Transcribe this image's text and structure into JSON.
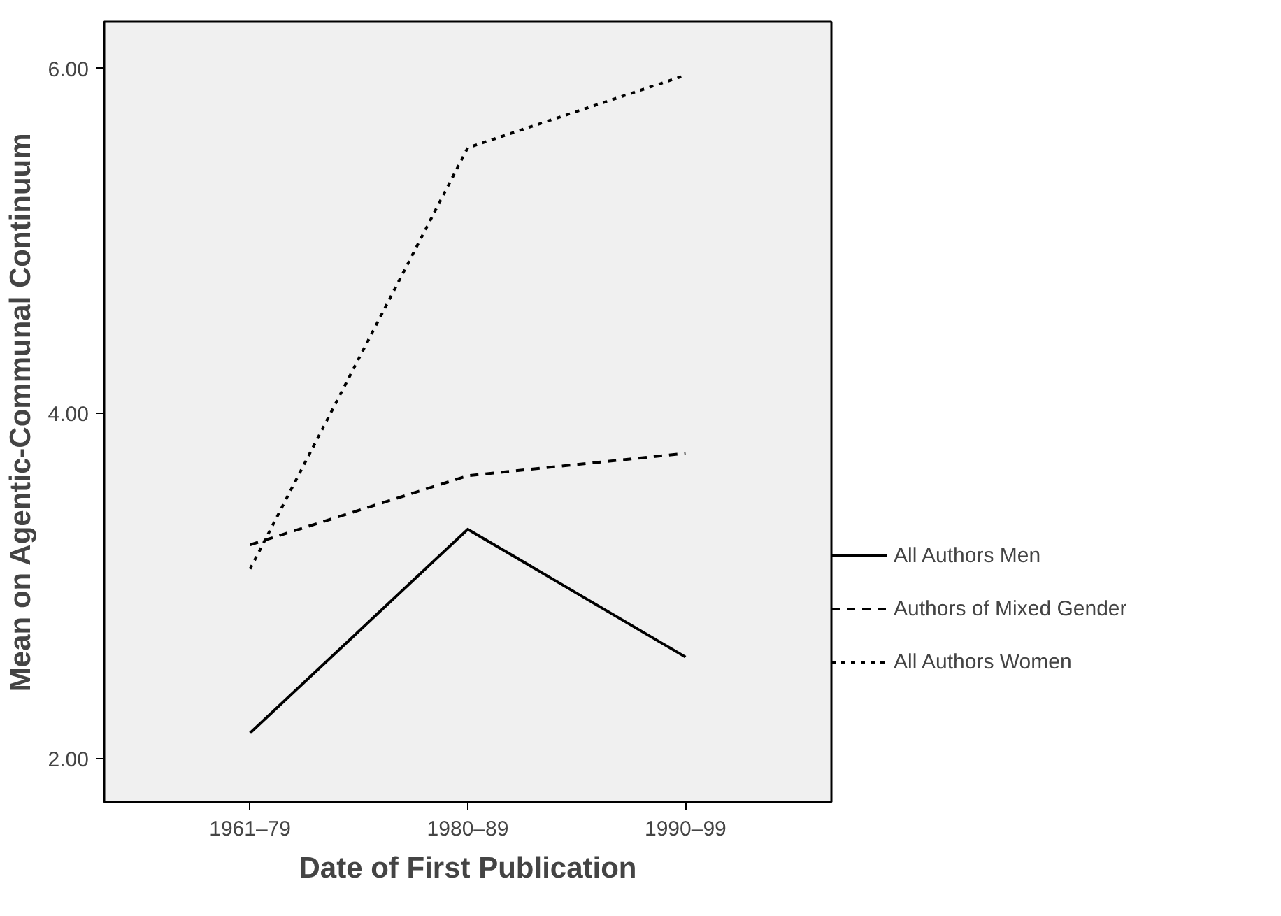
{
  "chart_data": {
    "type": "line",
    "xlabel": "Date of First Publication",
    "ylabel": "Mean on Agentic-Communal Continuum",
    "categories": [
      "1961–79",
      "1980–89",
      "1990–99"
    ],
    "series": [
      {
        "name": "All Authors Men",
        "color": "#000000",
        "line_style": "solid",
        "values": [
          2.15,
          3.33,
          2.59
        ]
      },
      {
        "name": "Authors of Mixed Gender",
        "color": "#000000",
        "line_style": "dashed",
        "values": [
          3.24,
          3.64,
          3.77
        ]
      },
      {
        "name": "All Authors Women",
        "color": "#000000",
        "line_style": "dotted",
        "values": [
          3.1,
          5.54,
          5.96
        ]
      }
    ],
    "ylim": [
      1.75,
      6.27
    ],
    "yticks": [
      {
        "value": 2,
        "label": "2.00"
      },
      {
        "value": 4,
        "label": "4.00"
      },
      {
        "value": 6,
        "label": "6.00"
      }
    ],
    "grid": false,
    "legend": "right",
    "marker": "none"
  }
}
